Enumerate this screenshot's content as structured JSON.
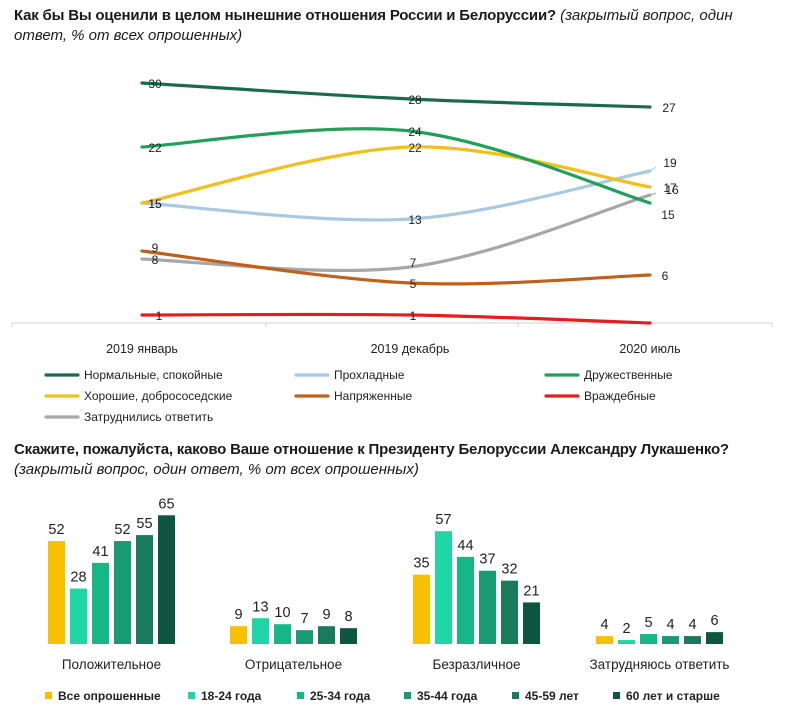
{
  "chart1": {
    "title": "Как бы Вы оценили в целом нынешние отношения России и Белоруссии?",
    "subtitle": "(закрытый вопрос, один ответ, % от всех опрошенных)"
  },
  "chart2": {
    "title": "Скажите, пожалуйста, каково Ваше отношение к Президенту Белоруссии Александру Лукашенко?",
    "subtitle": "(закрытый вопрос, один ответ, % от всех опрошенных)"
  },
  "chart_data": [
    {
      "type": "line",
      "title": "Как бы Вы оценили в целом нынешние отношения России и Белоруссии?",
      "subtitle": "(закрытый вопрос, один ответ, % от всех опрошенных)",
      "x": [
        "2019 январь",
        "2019 декабрь",
        "2020 июль"
      ],
      "ylim": [
        0,
        32
      ],
      "grid": false,
      "legend_position": "bottom",
      "series": [
        {
          "name": "Нормальные, спокойные",
          "values": [
            30,
            28,
            27
          ],
          "color": "#1b6b4a"
        },
        {
          "name": "Прохладные",
          "values": [
            15,
            13,
            19
          ],
          "color": "#a9c8e2"
        },
        {
          "name": "Дружественные",
          "values": [
            22,
            24,
            15
          ],
          "color": "#21a05a"
        },
        {
          "name": "Хорошие, добрососедские",
          "values": [
            15,
            22,
            17
          ],
          "color": "#f2c01a"
        },
        {
          "name": "Напряженные",
          "values": [
            9,
            5,
            6
          ],
          "color": "#c0601a"
        },
        {
          "name": "Враждебные",
          "values": [
            1,
            1,
            0
          ],
          "color": "#e41e1e"
        },
        {
          "name": "Затруднились ответить",
          "values": [
            8,
            7,
            16
          ],
          "color": "#a7a7a7"
        }
      ]
    },
    {
      "type": "bar",
      "title": "Скажите, пожалуйста, каково Ваше отношение к Президенту Белоруссии Александру Лукашенко?",
      "subtitle": "(закрытый вопрос, один ответ, % от всех опрошенных)",
      "categories": [
        "Положительное",
        "Отрицательное",
        "Безразличное",
        "Затрудняюсь ответить"
      ],
      "ylim": [
        0,
        70
      ],
      "legend_position": "bottom",
      "series": [
        {
          "name": "Все опрошенные",
          "values": [
            52,
            9,
            35,
            4
          ],
          "color": "#f7c000"
        },
        {
          "name": "18-24 года",
          "values": [
            28,
            13,
            57,
            2
          ],
          "color": "#1fd6a6"
        },
        {
          "name": "25-34 года",
          "values": [
            41,
            10,
            44,
            5
          ],
          "color": "#17b686"
        },
        {
          "name": "35-44 года",
          "values": [
            52,
            7,
            37,
            4
          ],
          "color": "#189a72"
        },
        {
          "name": "45-59 лет",
          "values": [
            55,
            9,
            32,
            4
          ],
          "color": "#1a7a5c"
        },
        {
          "name": "60 лет и старше",
          "values": [
            65,
            8,
            21,
            6
          ],
          "color": "#0e5640"
        }
      ]
    }
  ]
}
